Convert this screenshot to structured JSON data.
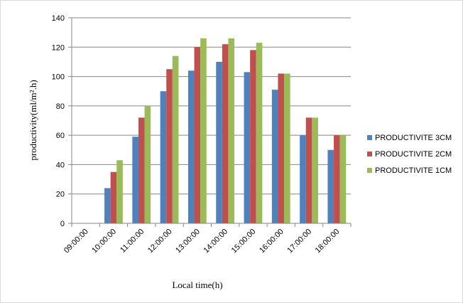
{
  "chart_data": {
    "type": "bar",
    "title": "",
    "xlabel": "Local time(h)",
    "ylabel": "productivity(ml/m².h)",
    "ylim": [
      0,
      140
    ],
    "yticks": [
      0,
      20,
      40,
      60,
      80,
      100,
      120,
      140
    ],
    "grid": "horizontal",
    "legend_position": "right",
    "categories": [
      "09:00:00",
      "10:00:00",
      "11:00:00",
      "12:00:00",
      "13:00:00",
      "14:00:00",
      "15:00:00",
      "16:00:00",
      "17:00:00",
      "18:00:00"
    ],
    "series": [
      {
        "name": "PRODUCTIVITE 3CM",
        "color": "#4f81bd",
        "values": [
          0,
          24,
          59,
          90,
          104,
          110,
          103,
          91,
          60,
          50
        ]
      },
      {
        "name": "PRODUCTIVITE 2CM",
        "color": "#c0504d",
        "values": [
          0,
          35,
          72,
          105,
          120,
          122,
          118,
          102,
          72,
          60
        ]
      },
      {
        "name": "PRODUCTIVITE 1CM",
        "color": "#9bbb59",
        "values": [
          0,
          43,
          80,
          114,
          126,
          126,
          123,
          102,
          72,
          60
        ]
      }
    ]
  }
}
